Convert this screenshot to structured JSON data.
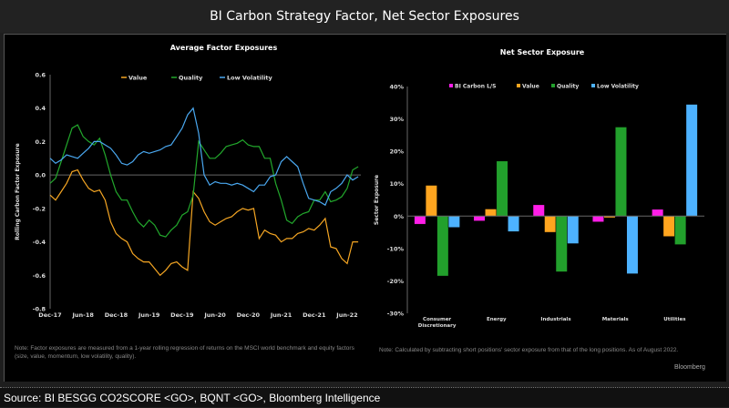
{
  "header": {
    "title": "BI Carbon Strategy Factor, Net Sector Exposures"
  },
  "footer": {
    "source": "Source: BI BESGG CO2SCORE <GO>, BQNT <GO>, Bloomberg Intelligence"
  },
  "notes": {
    "left": "Note: Factor exposures are measured from a 1-year rolling regression of returns on the MSCI world benchmark and equity factors (size, value, momentum, low volatility, quality).",
    "right": "Note: Calculated by subtracting short positions' sector exposure from that of the long positions. As of August 2022.",
    "brand": "Bloomberg"
  },
  "chart_data": [
    {
      "type": "line",
      "title": "Average Factor Exposures",
      "xlabel": "",
      "ylabel": "Rolling Carbon Factor Exposure",
      "ylim": [
        -0.8,
        0.6
      ],
      "yticks": [
        "0.6",
        "0.4",
        "0.2",
        "0.0",
        "-0.2",
        "-0.4",
        "-0.6",
        "-0.8"
      ],
      "xticks": [
        "Dec-17",
        "Jun-18",
        "Dec-18",
        "Jun-19",
        "Dec-19",
        "Jun-20",
        "Dec-20",
        "Jun-21",
        "Dec-21",
        "Jun-22"
      ],
      "legend": "top-center",
      "grid": false,
      "x": [
        "2017-12",
        "2018-01",
        "2018-02",
        "2018-03",
        "2018-04",
        "2018-05",
        "2018-06",
        "2018-07",
        "2018-08",
        "2018-09",
        "2018-10",
        "2018-11",
        "2018-12",
        "2019-01",
        "2019-02",
        "2019-03",
        "2019-04",
        "2019-05",
        "2019-06",
        "2019-07",
        "2019-08",
        "2019-09",
        "2019-10",
        "2019-11",
        "2019-12",
        "2020-01",
        "2020-02",
        "2020-03",
        "2020-04",
        "2020-05",
        "2020-06",
        "2020-07",
        "2020-08",
        "2020-09",
        "2020-10",
        "2020-11",
        "2020-12",
        "2021-01",
        "2021-02",
        "2021-03",
        "2021-04",
        "2021-05",
        "2021-06",
        "2021-07",
        "2021-08",
        "2021-09",
        "2021-10",
        "2021-11",
        "2021-12",
        "2022-01",
        "2022-02",
        "2022-03",
        "2022-04",
        "2022-05",
        "2022-06",
        "2022-07",
        "2022-08"
      ],
      "series": [
        {
          "name": "Value",
          "color": "#f5a623",
          "values": [
            -0.12,
            -0.15,
            -0.1,
            -0.05,
            0.02,
            0.03,
            -0.03,
            -0.08,
            -0.1,
            -0.09,
            -0.15,
            -0.28,
            -0.35,
            -0.38,
            -0.4,
            -0.47,
            -0.5,
            -0.52,
            -0.52,
            -0.56,
            -0.6,
            -0.57,
            -0.53,
            -0.52,
            -0.55,
            -0.57,
            -0.1,
            -0.14,
            -0.22,
            -0.28,
            -0.3,
            -0.28,
            -0.26,
            -0.25,
            -0.22,
            -0.2,
            -0.21,
            -0.2,
            -0.38,
            -0.33,
            -0.35,
            -0.36,
            -0.4,
            -0.38,
            -0.38,
            -0.35,
            -0.34,
            -0.32,
            -0.33,
            -0.3,
            -0.26,
            -0.43,
            -0.44,
            -0.5,
            -0.53,
            -0.4,
            -0.4
          ]
        },
        {
          "name": "Quality",
          "color": "#22a82c",
          "values": [
            -0.05,
            -0.02,
            0.08,
            0.18,
            0.28,
            0.3,
            0.23,
            0.2,
            0.18,
            0.22,
            0.12,
            0.0,
            -0.1,
            -0.15,
            -0.15,
            -0.22,
            -0.28,
            -0.31,
            -0.27,
            -0.3,
            -0.36,
            -0.37,
            -0.33,
            -0.3,
            -0.24,
            -0.22,
            -0.12,
            0.2,
            0.15,
            0.1,
            0.1,
            0.13,
            0.17,
            0.18,
            0.19,
            0.21,
            0.18,
            0.17,
            0.17,
            0.1,
            0.1,
            -0.05,
            -0.15,
            -0.27,
            -0.29,
            -0.25,
            -0.23,
            -0.22,
            -0.15,
            -0.15,
            -0.1,
            -0.16,
            -0.15,
            -0.13,
            -0.08,
            0.03,
            0.05
          ]
        },
        {
          "name": "Low Volatility",
          "color": "#4aa8f0",
          "values": [
            0.1,
            0.07,
            0.09,
            0.12,
            0.11,
            0.1,
            0.13,
            0.16,
            0.2,
            0.2,
            0.18,
            0.16,
            0.12,
            0.07,
            0.06,
            0.08,
            0.12,
            0.14,
            0.13,
            0.14,
            0.15,
            0.17,
            0.18,
            0.23,
            0.28,
            0.36,
            0.4,
            0.25,
            0.0,
            -0.06,
            -0.04,
            -0.05,
            -0.05,
            -0.06,
            -0.05,
            -0.06,
            -0.08,
            -0.1,
            -0.06,
            -0.06,
            -0.01,
            0.0,
            0.08,
            0.11,
            0.08,
            0.05,
            -0.05,
            -0.14,
            -0.15,
            -0.16,
            -0.18,
            -0.1,
            -0.08,
            -0.05,
            0.0,
            -0.03,
            -0.01
          ]
        }
      ]
    },
    {
      "type": "bar",
      "title": "Net Sector Exposure",
      "xlabel": "",
      "ylabel": "Sector Exposure",
      "ylim": [
        -30,
        40
      ],
      "yticks": [
        "40%",
        "30%",
        "20%",
        "10%",
        "0%",
        "-10%",
        "-20%",
        "-30%"
      ],
      "legend": "top-center",
      "grid": false,
      "categories": [
        "Consumer Discretionary",
        "Energy",
        "Industrials",
        "Materials",
        "Utilities"
      ],
      "series": [
        {
          "name": "BI Carbon L/S",
          "color": "#ff1ee8",
          "values": [
            -2.5,
            -1.5,
            3.5,
            -1.8,
            2.1
          ]
        },
        {
          "name": "Value",
          "color": "#ffa51f",
          "values": [
            9.5,
            2.2,
            -5.0,
            -0.5,
            -6.3
          ]
        },
        {
          "name": "Quality",
          "color": "#22a02c",
          "values": [
            -18.5,
            17.0,
            -17.2,
            27.5,
            -8.8
          ]
        },
        {
          "name": "Low Volatility",
          "color": "#4db2ff",
          "values": [
            -3.5,
            -4.8,
            -8.5,
            -17.8,
            34.5
          ]
        }
      ]
    }
  ]
}
